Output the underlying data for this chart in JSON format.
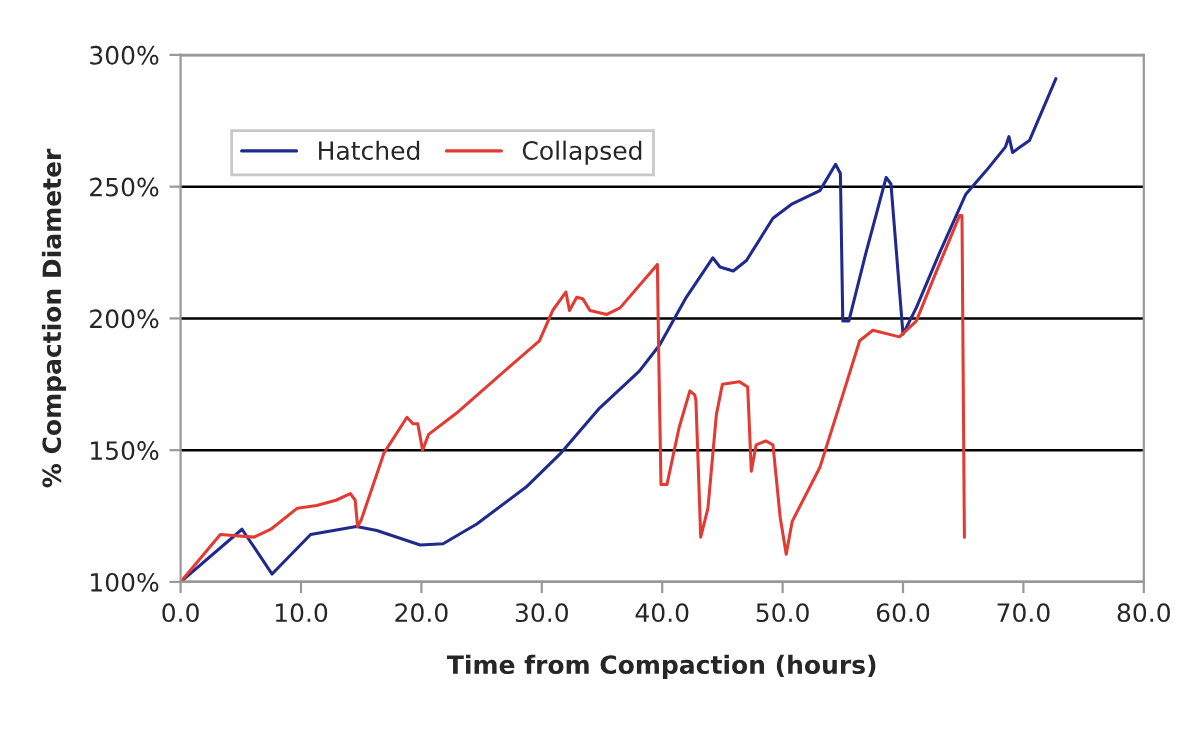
{
  "chart_data": {
    "type": "line",
    "xlabel": "Time from Compaction (hours)",
    "ylabel": "% Compaction Diameter",
    "xlim": [
      0,
      80
    ],
    "ylim": [
      100,
      300
    ],
    "xticks": [
      {
        "value": 0,
        "label": "0.0"
      },
      {
        "value": 10,
        "label": "10.0"
      },
      {
        "value": 20,
        "label": "20.0"
      },
      {
        "value": 30,
        "label": "30.0"
      },
      {
        "value": 40,
        "label": "40.0"
      },
      {
        "value": 50,
        "label": "50.0"
      },
      {
        "value": 60,
        "label": "60.0"
      },
      {
        "value": 70,
        "label": "70.0"
      },
      {
        "value": 80,
        "label": "80.0"
      }
    ],
    "yticks": [
      {
        "value": 100,
        "label": "100%"
      },
      {
        "value": 150,
        "label": "150%"
      },
      {
        "value": 200,
        "label": "200%"
      },
      {
        "value": 250,
        "label": "250%"
      },
      {
        "value": 300,
        "label": "300%"
      }
    ],
    "grid": "y",
    "legend": "top left",
    "marker": "none",
    "line_style": "solid",
    "series": [
      {
        "name": "Hatched",
        "color": "#1f2a8c",
        "x": [
          0,
          5.1,
          7.6,
          10.8,
          14.6,
          16.3,
          19.9,
          21.8,
          24.6,
          28.7,
          31.5,
          34.8,
          38.1,
          39.8,
          42.0,
          44.2,
          44.8,
          45.9,
          47.0,
          49.2,
          50.8,
          53.1,
          54.4,
          54.8,
          55.0,
          55.5,
          56.9,
          58.6,
          59.0,
          60.0,
          61.1,
          63.0,
          65.2,
          66.9,
          68.5,
          68.8,
          69.1,
          70.5,
          72.7
        ],
        "values": [
          100,
          120,
          103,
          118,
          121,
          119.5,
          114,
          114.5,
          122,
          136,
          148.5,
          166,
          180,
          190,
          208,
          223,
          219.5,
          218,
          222,
          238,
          243.5,
          248.5,
          258.5,
          255,
          199,
          199,
          224.5,
          253.5,
          251,
          194,
          204,
          224.5,
          247,
          256,
          265,
          269,
          263,
          267.5,
          291
        ]
      },
      {
        "name": "Collapsed",
        "color": "#e23b33",
        "x": [
          0,
          3.3,
          6.1,
          7.5,
          9.7,
          11.3,
          12.9,
          14.1,
          14.5,
          14.7,
          15.0,
          16.9,
          18.8,
          19.3,
          19.7,
          20.1,
          20.6,
          22.9,
          27.4,
          29.8,
          30.9,
          32.0,
          32.3,
          32.9,
          33.4,
          34.0,
          35.4,
          36.5,
          39.6,
          39.7,
          39.9,
          40.4,
          41.4,
          42.3,
          42.7,
          42.8,
          43.2,
          43.8,
          44.5,
          45.0,
          46.4,
          47.1,
          47.4,
          47.8,
          48.6,
          49.2,
          49.8,
          50.3,
          50.8,
          53.1,
          55.0,
          56.4,
          57.5,
          59.7,
          61.1,
          62.7,
          64.7,
          64.9,
          65.1
        ],
        "values": [
          100,
          118,
          117,
          120,
          128,
          129,
          131,
          133.5,
          131,
          121,
          123.5,
          149,
          162.5,
          160,
          160,
          150,
          156,
          164,
          182,
          191.5,
          203,
          210,
          203,
          208,
          207.5,
          203,
          201.5,
          204,
          220.5,
          189,
          137,
          137,
          158.5,
          172.5,
          171,
          169,
          117,
          128,
          163.5,
          175,
          176,
          174,
          142,
          152,
          153.5,
          152,
          124.5,
          110.5,
          123,
          143.5,
          171,
          191.5,
          195.5,
          193,
          199,
          217,
          239,
          239,
          117
        ]
      }
    ]
  }
}
